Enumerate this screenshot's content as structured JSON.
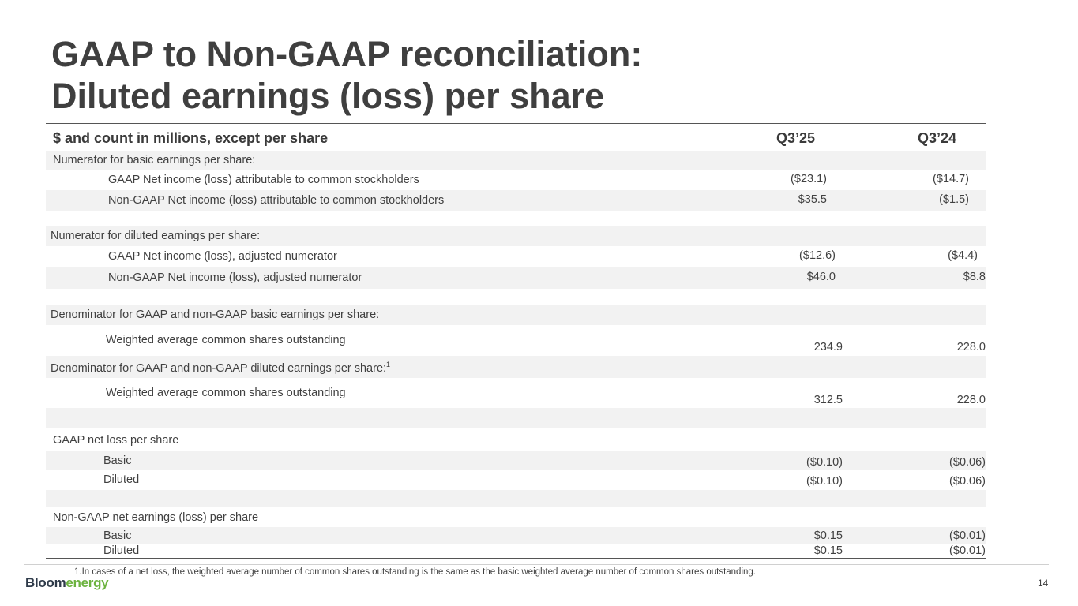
{
  "title": {
    "line1": "GAAP to Non-GAAP reconciliation:",
    "line2": "Diluted earnings (loss) per share"
  },
  "table": {
    "header": {
      "label": "$ and count in millions, except per share",
      "col1": "Q3’25",
      "col2": "Q3’24"
    },
    "rows": [
      {
        "label": "Numerator for basic earnings per share:"
      },
      {
        "label": "GAAP Net income (loss) attributable to common stockholders",
        "v1": "($23.1)",
        "v2": "($14.7)"
      },
      {
        "label": "Non-GAAP Net income (loss) attributable to common stockholders",
        "v1": "$35.5",
        "v2": "($1.5)"
      },
      {
        "label": "Numerator for diluted earnings per share:"
      },
      {
        "label": "GAAP Net income (loss), adjusted numerator",
        "v1": "($12.6)",
        "v2": "($4.4)"
      },
      {
        "label": "Non-GAAP Net income (loss), adjusted numerator",
        "v1": "$46.0",
        "v2": "$8.8"
      },
      {
        "label": "Denominator for GAAP and non-GAAP basic earnings per share:"
      },
      {
        "label": "Weighted average common shares outstanding",
        "v1": "234.9",
        "v2": "228.0"
      },
      {
        "label": "Denominator for GAAP and non-GAAP diluted earnings per share:",
        "sup": "1"
      },
      {
        "label": "Weighted average common shares outstanding",
        "v1": "312.5",
        "v2": "228.0"
      },
      {
        "label": "GAAP net loss per share"
      },
      {
        "label": "Basic",
        "v1": "($0.10)",
        "v2": "($0.06)"
      },
      {
        "label": "Diluted",
        "v1": "($0.10)",
        "v2": "($0.06)"
      },
      {
        "label": "Non-GAAP net earnings (loss) per share"
      },
      {
        "label": "Basic",
        "v1": "$0.15",
        "v2": "($0.01)"
      },
      {
        "label": "Diluted",
        "v1": "$0.15",
        "v2": "($0.01)"
      }
    ]
  },
  "footnote": "1.In cases of a net loss, the weighted average number of common shares outstanding is the same as the basic weighted average number of common shares outstanding.",
  "page_number": "14",
  "logo": {
    "part1": "Bloom",
    "part2": "energy"
  }
}
